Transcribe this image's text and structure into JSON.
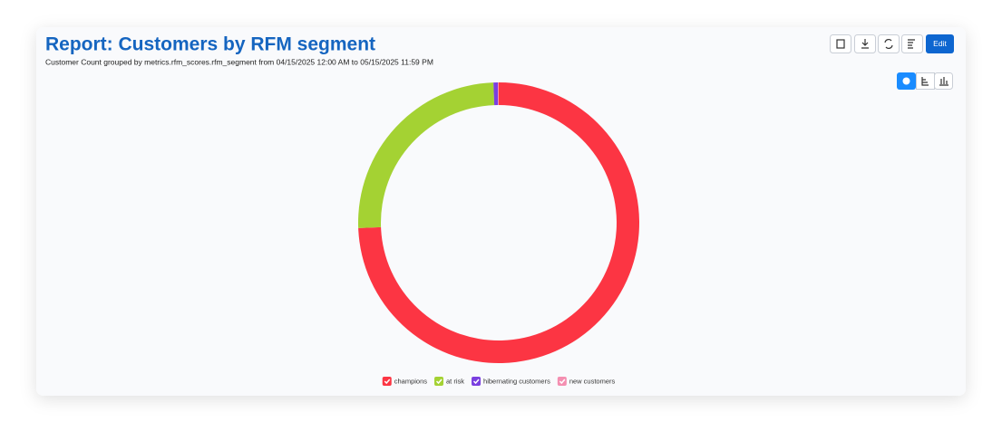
{
  "header": {
    "title": "Report: Customers by RFM segment",
    "subtitle": "Customer Count grouped by metrics.rfm_scores.rfm_segment from 04/15/2025 12:00 AM to 05/15/2025 11:59 PM"
  },
  "toolbar": {
    "edit": "Edit"
  },
  "chart_data": {
    "type": "donut",
    "categories": [
      "champions",
      "at risk",
      "hibernating customers",
      "new customers"
    ],
    "values": [
      74.4,
      25,
      0.5,
      0.1
    ],
    "colors": [
      "#fc3543",
      "#a4d233",
      "#7a3fe0",
      "#f48fb1"
    ]
  }
}
